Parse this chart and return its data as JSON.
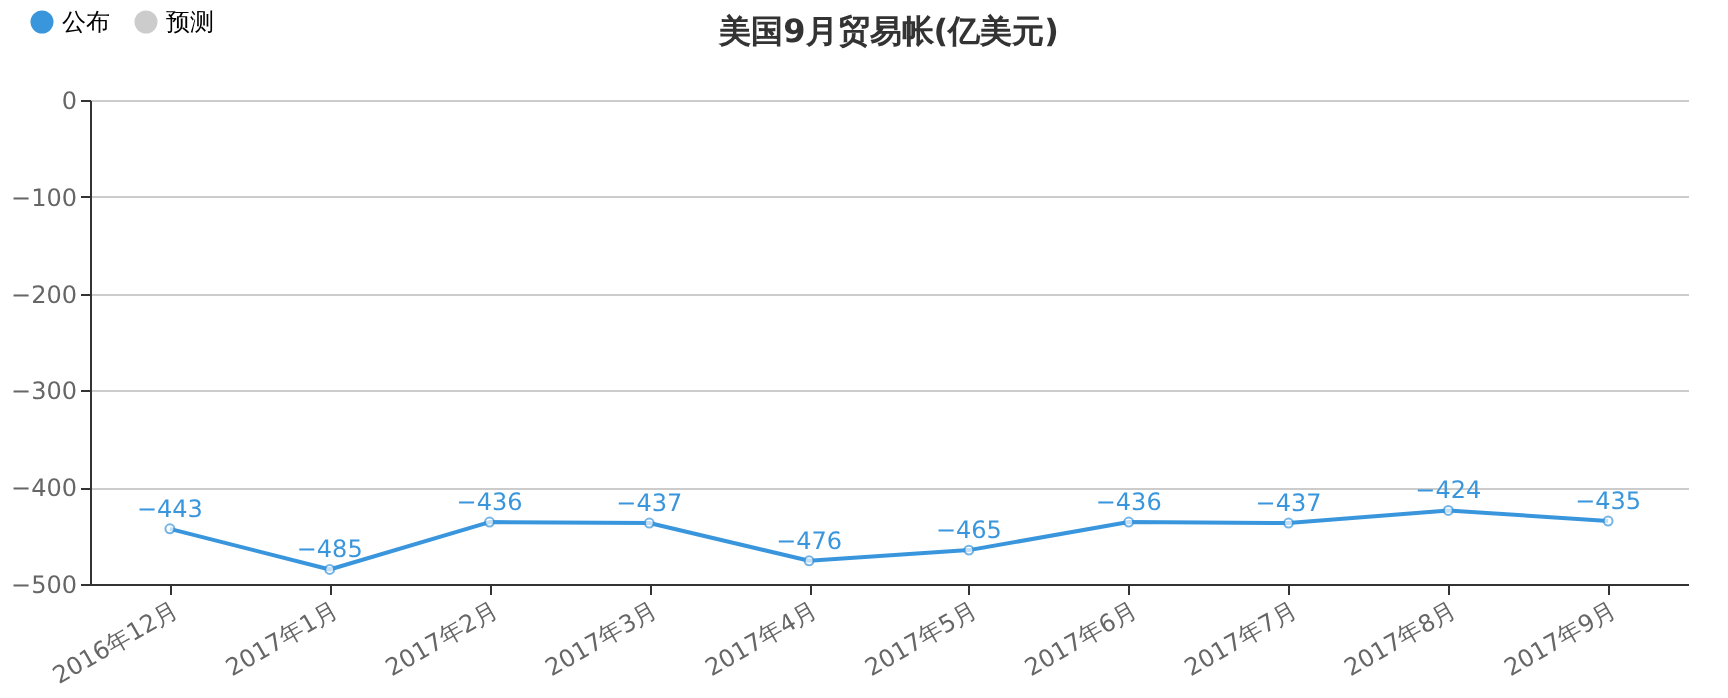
{
  "chart_data": {
    "type": "line",
    "title": "美国9月贸易帐(亿美元)",
    "categories": [
      "2016年12月",
      "2017年1月",
      "2017年2月",
      "2017年3月",
      "2017年4月",
      "2017年5月",
      "2017年6月",
      "2017年7月",
      "2017年8月",
      "2017年9月"
    ],
    "series": [
      {
        "name": "公布",
        "color": "#3a96dc",
        "values": [
          -443,
          -485,
          -436,
          -437,
          -476,
          -465,
          -436,
          -437,
          -424,
          -435
        ]
      },
      {
        "name": "预测",
        "color": "#cccccc",
        "values": [
          null,
          null,
          null,
          null,
          null,
          null,
          null,
          null,
          null,
          null
        ]
      }
    ],
    "ylim": [
      -500,
      0
    ],
    "yticks": [
      0,
      -100,
      -200,
      -300,
      -400,
      -500
    ],
    "grid": "y",
    "legend": "top left",
    "marker": "circle",
    "line_style": "solid",
    "data_labels": true
  }
}
